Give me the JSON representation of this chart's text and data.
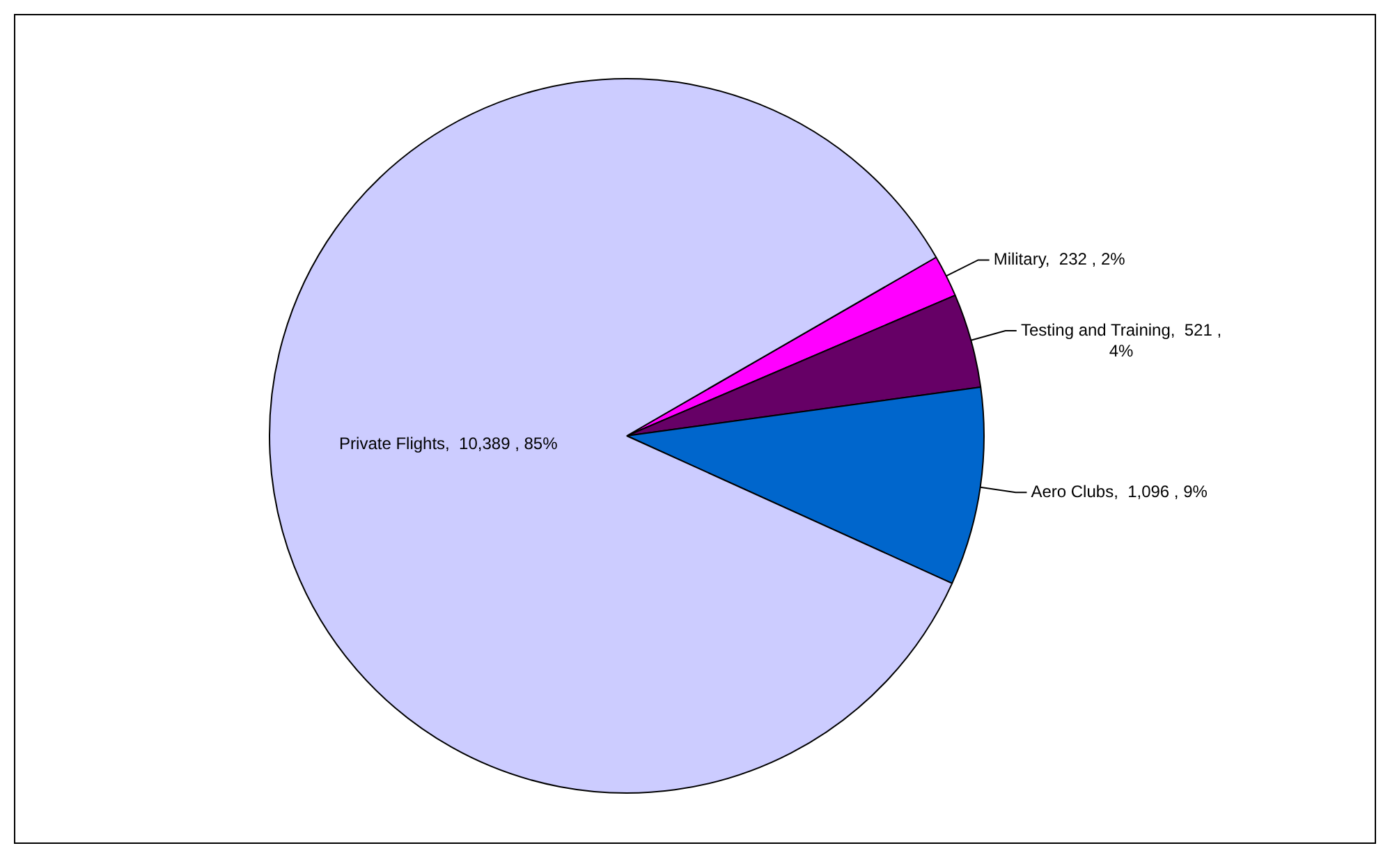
{
  "chart_data": {
    "type": "pie",
    "categories": [
      "Military",
      "Testing and Training",
      "Aero Clubs",
      "Private Flights"
    ],
    "values": [
      232,
      521,
      1096,
      10389
    ],
    "value_labels": [
      "232 , 2%",
      "521 , 4%",
      "1,096 , 9%",
      "10,389 , 85%"
    ],
    "colors": [
      "#ff00ff",
      "#660066",
      "#0066cc",
      "#ccccff"
    ],
    "legend": false
  }
}
